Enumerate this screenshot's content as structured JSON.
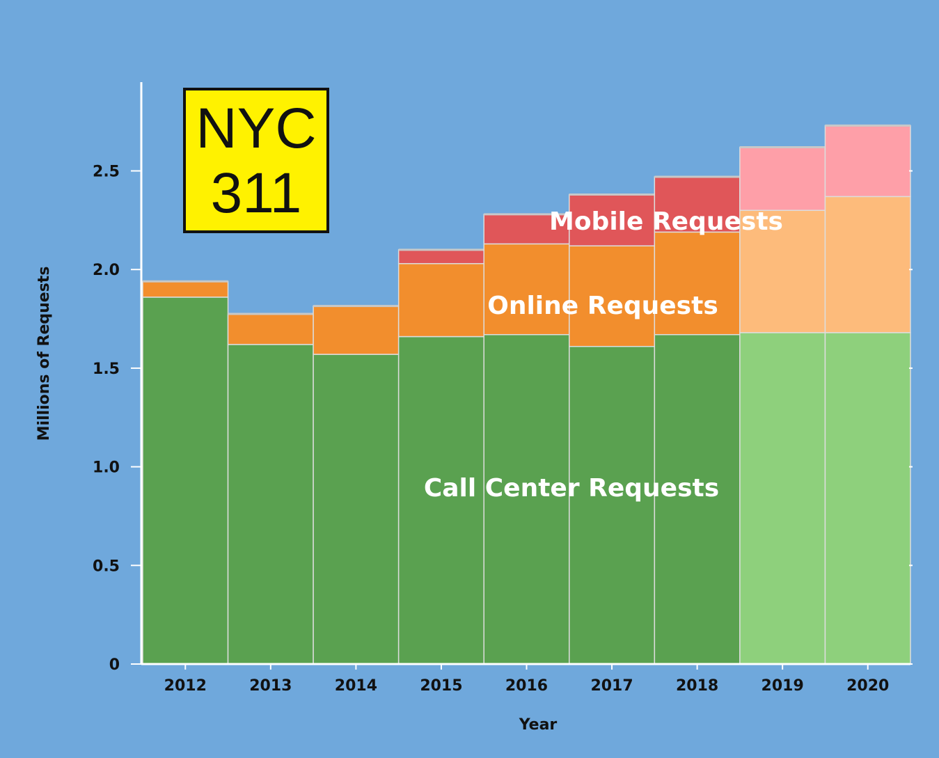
{
  "chart_data": {
    "type": "bar",
    "stacked": true,
    "categories": [
      "2012",
      "2013",
      "2014",
      "2015",
      "2016",
      "2017",
      "2018",
      "2019",
      "2020"
    ],
    "projected_categories": [
      "2019",
      "2020"
    ],
    "series": [
      {
        "name": "Call Center Requests",
        "values": [
          1.86,
          1.62,
          1.57,
          1.66,
          1.67,
          1.61,
          1.67,
          1.68,
          1.68
        ],
        "color": "#5aa150",
        "projected_color": "#8ed07c"
      },
      {
        "name": "Online Requests",
        "values": [
          0.08,
          0.155,
          0.245,
          0.37,
          0.46,
          0.51,
          0.52,
          0.62,
          0.69
        ],
        "color": "#f28e2d",
        "projected_color": "#fdbb7b"
      },
      {
        "name": "Mobile Requests",
        "values": [
          0.0,
          0.0,
          0.0,
          0.07,
          0.15,
          0.26,
          0.28,
          0.32,
          0.36
        ],
        "color": "#e05659",
        "projected_color": "#fe9fa8"
      }
    ],
    "total_cap_color": "#c8c8c8",
    "xlabel": "Year",
    "ylabel": "Millions of Requests",
    "ylim": [
      0,
      2.95
    ],
    "yticks": [
      0,
      0.5,
      1.0,
      1.5,
      2.0,
      2.5
    ],
    "ytick_labels": [
      "0",
      "0.5",
      "1.0",
      "1.5",
      "2.0",
      "2.5"
    ],
    "grid": false,
    "background": "#6fa8dc"
  },
  "logo": {
    "line1": "NYC",
    "line2": "311",
    "background": "#fff200",
    "border": "#111111"
  }
}
